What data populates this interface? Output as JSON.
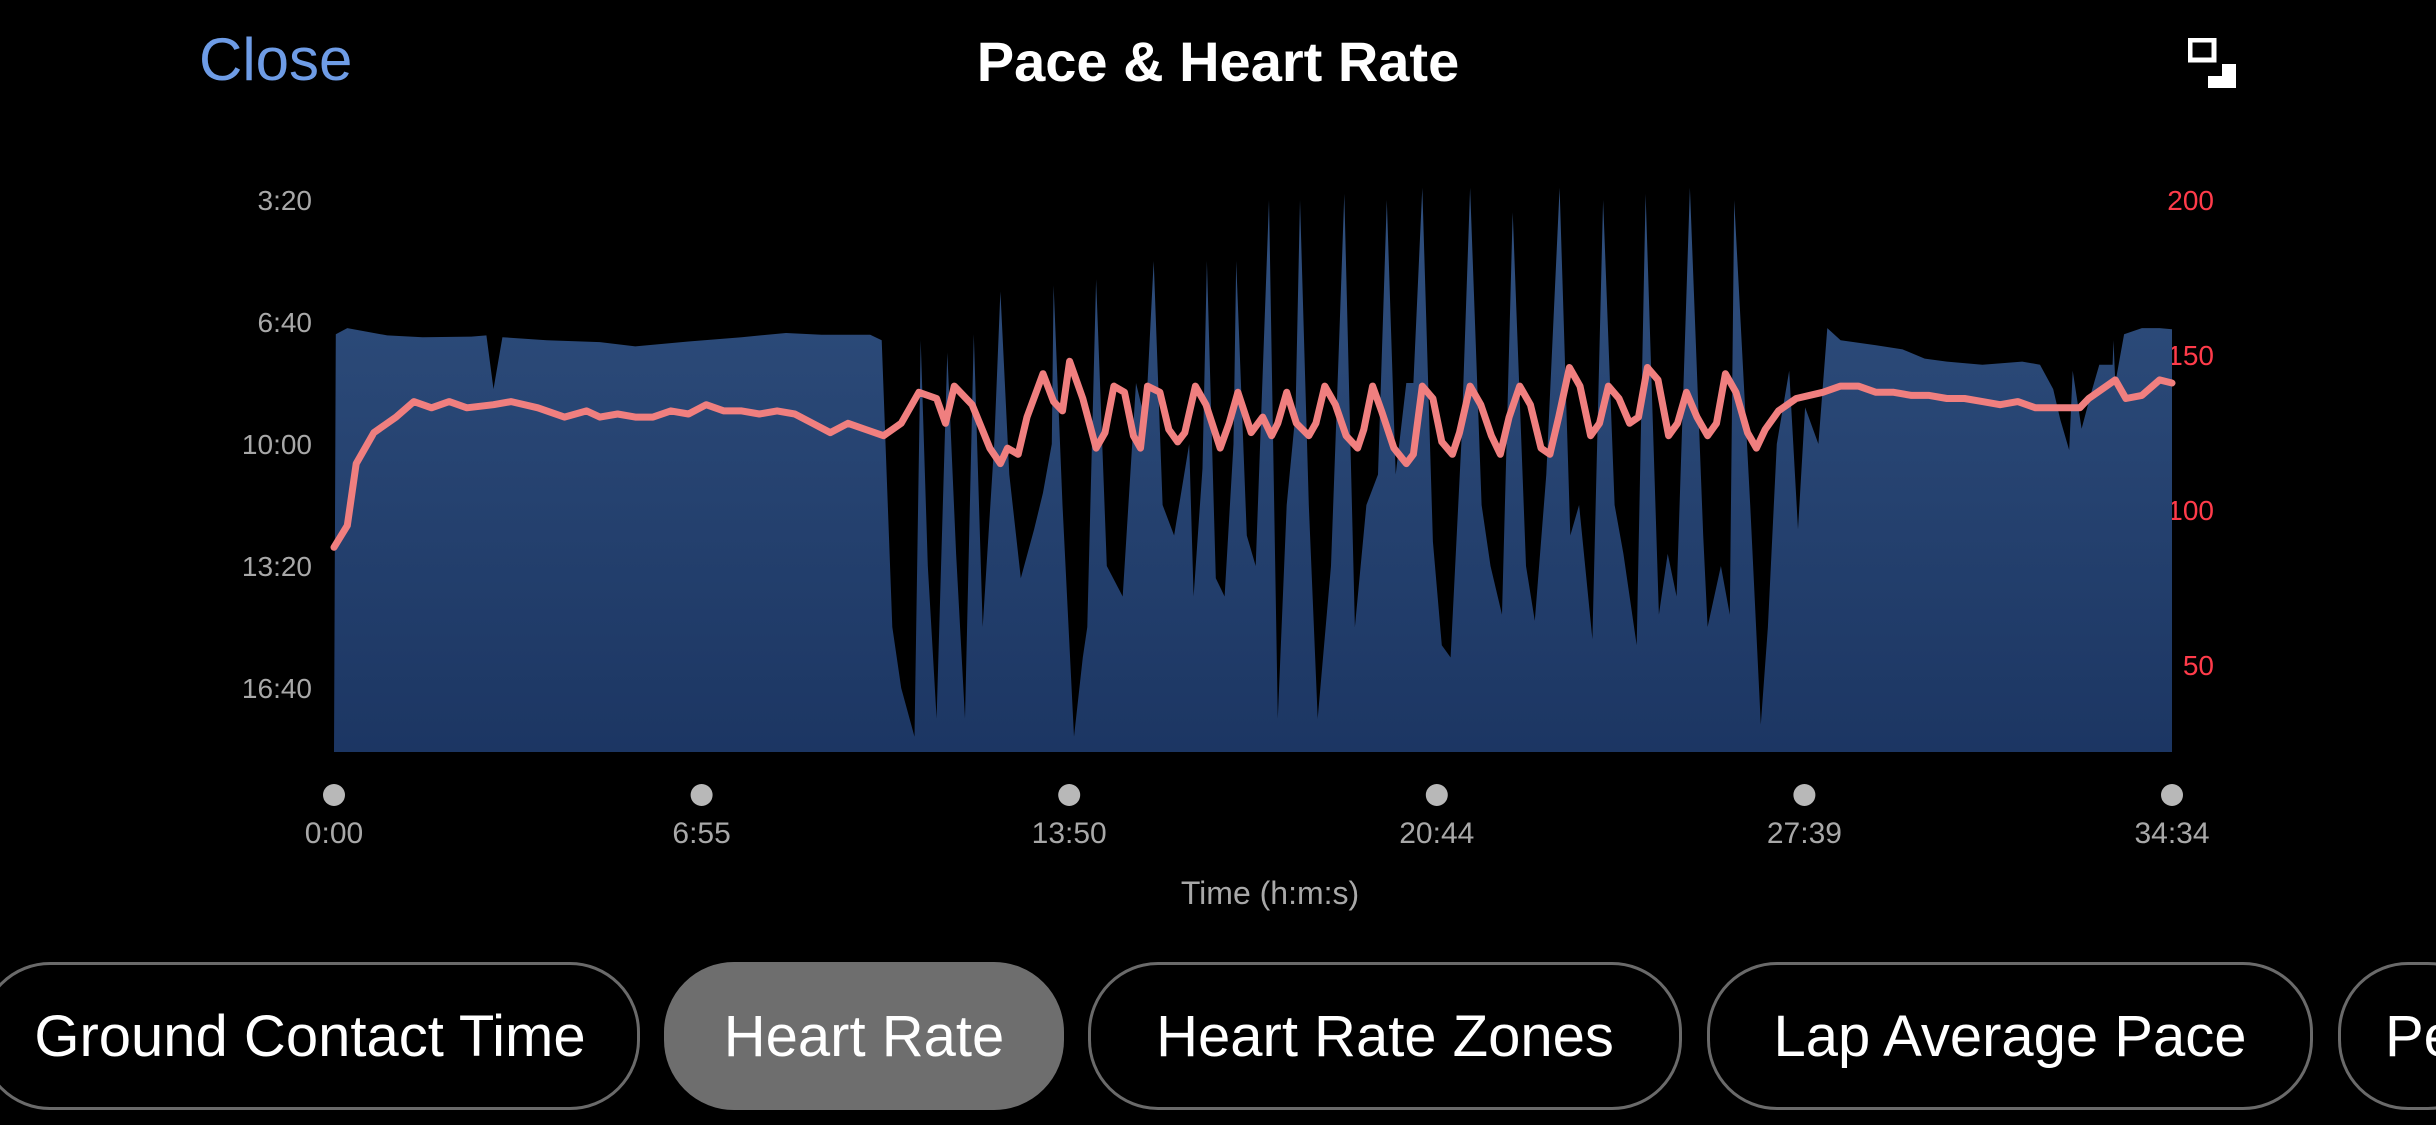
{
  "header": {
    "close_label": "Close",
    "title": "Pace & Heart Rate",
    "expand_icon": "expand-icon"
  },
  "tabs": [
    {
      "label": "Ground Contact Time",
      "active": false
    },
    {
      "label": "Heart Rate",
      "active": true
    },
    {
      "label": "Heart Rate Zones",
      "active": false
    },
    {
      "label": "Lap Average Pace",
      "active": false
    },
    {
      "label": "Pe",
      "active": false
    }
  ],
  "chart_data": {
    "type": "area",
    "xlabel": "Time (h:m:s)",
    "x_ticks": [
      "0:00",
      "6:55",
      "13:50",
      "20:44",
      "27:39",
      "34:34"
    ],
    "xlim_seconds": [
      0,
      2074
    ],
    "left_axis": {
      "ticks": [
        "3:20",
        "6:40",
        "10:00",
        "13:20",
        "16:40"
      ],
      "tick_seconds_per_km": [
        200,
        400,
        600,
        800,
        1000
      ],
      "range_seconds_per_km": [
        200,
        1105
      ],
      "inverted": true
    },
    "right_axis": {
      "ticks": [
        "200",
        "150",
        "100",
        "50"
      ],
      "values": [
        200,
        150,
        100,
        50
      ],
      "range": [
        22,
        200
      ],
      "color": "#ff3b4a"
    },
    "series": [
      {
        "axis": "left",
        "color": "#2d4c7e",
        "points": [
          [
            0,
            1105
          ],
          [
            2,
            420
          ],
          [
            15,
            410
          ],
          [
            60,
            422
          ],
          [
            100,
            425
          ],
          [
            155,
            424
          ],
          [
            172,
            422
          ],
          [
            180,
            510
          ],
          [
            190,
            425
          ],
          [
            240,
            430
          ],
          [
            300,
            433
          ],
          [
            340,
            440
          ],
          [
            400,
            432
          ],
          [
            460,
            425
          ],
          [
            510,
            418
          ],
          [
            550,
            421
          ],
          [
            605,
            421
          ],
          [
            618,
            430
          ],
          [
            630,
            900
          ],
          [
            640,
            1000
          ],
          [
            655,
            1080
          ],
          [
            662,
            430
          ],
          [
            670,
            800
          ],
          [
            680,
            1050
          ],
          [
            692,
            450
          ],
          [
            702,
            780
          ],
          [
            712,
            1050
          ],
          [
            722,
            420
          ],
          [
            732,
            900
          ],
          [
            745,
            600
          ],
          [
            752,
            350
          ],
          [
            762,
            650
          ],
          [
            775,
            820
          ],
          [
            790,
            740
          ],
          [
            800,
            680
          ],
          [
            810,
            600
          ],
          [
            812,
            340
          ],
          [
            822,
            700
          ],
          [
            835,
            1080
          ],
          [
            845,
            950
          ],
          [
            850,
            900
          ],
          [
            860,
            330
          ],
          [
            872,
            800
          ],
          [
            890,
            850
          ],
          [
            905,
            500
          ],
          [
            915,
            560
          ],
          [
            918,
            500
          ],
          [
            925,
            300
          ],
          [
            935,
            700
          ],
          [
            948,
            750
          ],
          [
            965,
            600
          ],
          [
            970,
            850
          ],
          [
            980,
            640
          ],
          [
            985,
            300
          ],
          [
            995,
            820
          ],
          [
            1005,
            850
          ],
          [
            1015,
            600
          ],
          [
            1018,
            300
          ],
          [
            1030,
            750
          ],
          [
            1040,
            800
          ],
          [
            1055,
            200
          ],
          [
            1065,
            1050
          ],
          [
            1075,
            700
          ],
          [
            1085,
            550
          ],
          [
            1090,
            200
          ],
          [
            1100,
            700
          ],
          [
            1110,
            1050
          ],
          [
            1125,
            800
          ],
          [
            1135,
            400
          ],
          [
            1140,
            190
          ],
          [
            1152,
            900
          ],
          [
            1165,
            700
          ],
          [
            1178,
            650
          ],
          [
            1188,
            200
          ],
          [
            1198,
            650
          ],
          [
            1210,
            500
          ],
          [
            1218,
            500
          ],
          [
            1228,
            180
          ],
          [
            1240,
            760
          ],
          [
            1250,
            930
          ],
          [
            1260,
            950
          ],
          [
            1272,
            600
          ],
          [
            1282,
            180
          ],
          [
            1295,
            700
          ],
          [
            1305,
            800
          ],
          [
            1318,
            880
          ],
          [
            1330,
            220
          ],
          [
            1345,
            800
          ],
          [
            1355,
            890
          ],
          [
            1368,
            650
          ],
          [
            1383,
            180
          ],
          [
            1395,
            750
          ],
          [
            1405,
            700
          ],
          [
            1420,
            920
          ],
          [
            1432,
            200
          ],
          [
            1445,
            700
          ],
          [
            1455,
            780
          ],
          [
            1470,
            930
          ],
          [
            1480,
            190
          ],
          [
            1495,
            880
          ],
          [
            1505,
            780
          ],
          [
            1515,
            850
          ],
          [
            1530,
            180
          ],
          [
            1545,
            750
          ],
          [
            1550,
            900
          ],
          [
            1565,
            800
          ],
          [
            1575,
            880
          ],
          [
            1580,
            200
          ],
          [
            1598,
            700
          ],
          [
            1610,
            1060
          ],
          [
            1618,
            900
          ],
          [
            1628,
            600
          ],
          [
            1642,
            480
          ],
          [
            1652,
            740
          ],
          [
            1660,
            540
          ],
          [
            1675,
            600
          ],
          [
            1685,
            410
          ],
          [
            1700,
            430
          ],
          [
            1740,
            438
          ],
          [
            1770,
            445
          ],
          [
            1795,
            460
          ],
          [
            1820,
            465
          ],
          [
            1860,
            470
          ],
          [
            1905,
            465
          ],
          [
            1925,
            470
          ],
          [
            1940,
            510
          ],
          [
            1948,
            560
          ],
          [
            1958,
            610
          ],
          [
            1962,
            480
          ],
          [
            1972,
            575
          ],
          [
            1982,
            520
          ],
          [
            1992,
            470
          ],
          [
            2007,
            470
          ],
          [
            2008,
            430
          ],
          [
            2010,
            500
          ],
          [
            2020,
            420
          ],
          [
            2040,
            410
          ],
          [
            2060,
            410
          ],
          [
            2074,
            412
          ]
        ]
      },
      {
        "axis": "right",
        "color": "#f07f7f",
        "points": [
          [
            0,
            88
          ],
          [
            15,
            95
          ],
          [
            25,
            115
          ],
          [
            45,
            125
          ],
          [
            70,
            130
          ],
          [
            90,
            135
          ],
          [
            110,
            133
          ],
          [
            130,
            135
          ],
          [
            150,
            133
          ],
          [
            180,
            134
          ],
          [
            200,
            135
          ],
          [
            230,
            133
          ],
          [
            260,
            130
          ],
          [
            285,
            132
          ],
          [
            300,
            130
          ],
          [
            320,
            131
          ],
          [
            340,
            130
          ],
          [
            360,
            130
          ],
          [
            380,
            132
          ],
          [
            400,
            131
          ],
          [
            420,
            134
          ],
          [
            440,
            132
          ],
          [
            460,
            132
          ],
          [
            480,
            131
          ],
          [
            500,
            132
          ],
          [
            520,
            131
          ],
          [
            540,
            128
          ],
          [
            560,
            125
          ],
          [
            580,
            128
          ],
          [
            600,
            126
          ],
          [
            620,
            124
          ],
          [
            640,
            128
          ],
          [
            660,
            138
          ],
          [
            680,
            136
          ],
          [
            690,
            128
          ],
          [
            700,
            140
          ],
          [
            720,
            134
          ],
          [
            740,
            120
          ],
          [
            752,
            115
          ],
          [
            760,
            120
          ],
          [
            772,
            118
          ],
          [
            782,
            130
          ],
          [
            800,
            144
          ],
          [
            812,
            135
          ],
          [
            822,
            132
          ],
          [
            830,
            148
          ],
          [
            845,
            136
          ],
          [
            860,
            120
          ],
          [
            870,
            125
          ],
          [
            880,
            140
          ],
          [
            892,
            138
          ],
          [
            902,
            124
          ],
          [
            910,
            120
          ],
          [
            918,
            140
          ],
          [
            932,
            138
          ],
          [
            942,
            126
          ],
          [
            952,
            122
          ],
          [
            960,
            125
          ],
          [
            972,
            140
          ],
          [
            984,
            134
          ],
          [
            1000,
            120
          ],
          [
            1010,
            128
          ],
          [
            1020,
            138
          ],
          [
            1035,
            125
          ],
          [
            1048,
            130
          ],
          [
            1058,
            124
          ],
          [
            1065,
            128
          ],
          [
            1075,
            138
          ],
          [
            1086,
            128
          ],
          [
            1100,
            124
          ],
          [
            1108,
            128
          ],
          [
            1118,
            140
          ],
          [
            1130,
            134
          ],
          [
            1142,
            124
          ],
          [
            1155,
            120
          ],
          [
            1162,
            126
          ],
          [
            1172,
            140
          ],
          [
            1182,
            132
          ],
          [
            1196,
            120
          ],
          [
            1210,
            115
          ],
          [
            1218,
            118
          ],
          [
            1228,
            140
          ],
          [
            1240,
            136
          ],
          [
            1250,
            122
          ],
          [
            1262,
            118
          ],
          [
            1270,
            125
          ],
          [
            1282,
            140
          ],
          [
            1294,
            134
          ],
          [
            1306,
            124
          ],
          [
            1316,
            118
          ],
          [
            1326,
            130
          ],
          [
            1338,
            140
          ],
          [
            1350,
            134
          ],
          [
            1362,
            120
          ],
          [
            1372,
            118
          ],
          [
            1382,
            130
          ],
          [
            1394,
            146
          ],
          [
            1406,
            140
          ],
          [
            1418,
            124
          ],
          [
            1428,
            128
          ],
          [
            1438,
            140
          ],
          [
            1450,
            136
          ],
          [
            1462,
            128
          ],
          [
            1472,
            130
          ],
          [
            1482,
            146
          ],
          [
            1494,
            142
          ],
          [
            1506,
            124
          ],
          [
            1516,
            128
          ],
          [
            1526,
            138
          ],
          [
            1538,
            130
          ],
          [
            1550,
            124
          ],
          [
            1560,
            128
          ],
          [
            1570,
            144
          ],
          [
            1582,
            138
          ],
          [
            1595,
            125
          ],
          [
            1605,
            120
          ],
          [
            1615,
            126
          ],
          [
            1630,
            132
          ],
          [
            1650,
            136
          ],
          [
            1680,
            138
          ],
          [
            1700,
            140
          ],
          [
            1720,
            140
          ],
          [
            1740,
            138
          ],
          [
            1760,
            138
          ],
          [
            1780,
            137
          ],
          [
            1800,
            137
          ],
          [
            1820,
            136
          ],
          [
            1840,
            136
          ],
          [
            1860,
            135
          ],
          [
            1880,
            134
          ],
          [
            1900,
            135
          ],
          [
            1920,
            133
          ],
          [
            1940,
            133
          ],
          [
            1960,
            133
          ],
          [
            1970,
            133
          ],
          [
            1980,
            136
          ],
          [
            2000,
            140
          ],
          [
            2010,
            142
          ],
          [
            2022,
            136
          ],
          [
            2040,
            137
          ],
          [
            2060,
            142
          ],
          [
            2074,
            141
          ]
        ]
      }
    ]
  }
}
